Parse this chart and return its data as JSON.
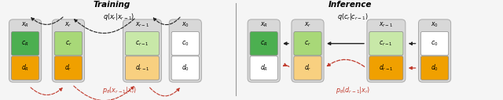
{
  "bg_color": "#f5f5f5",
  "panel_bg": "#d8d8d8",
  "green_dark": "#4caf50",
  "green_light": "#a8d878",
  "green_lighter": "#c8e8a8",
  "orange_dark": "#f0a000",
  "orange_light": "#f8d080",
  "white_box": "#ffffff",
  "arrow_black": "#222222",
  "arrow_red": "#c0392b",
  "divider_color": "#999999",
  "title_training": "Training",
  "title_inference": "Inference",
  "label_xR": "$x_R$",
  "label_xr": "$x_r$",
  "label_xr1": "$x_{r-1}$",
  "label_x0": "$x_0$",
  "label_cR": "$c_R$",
  "label_cr": "$c_r$",
  "label_cr1": "$c_{r-1}$",
  "label_c0": "$c_0$",
  "label_dR": "$d_R$",
  "label_dr": "$d_r$",
  "label_dr1": "$d_{r-1}$",
  "label_d0": "$d_0$",
  "q_train": "$q(x_r|x_{r-1})$",
  "p_train": "$p_\\theta(x_{r-1}|x_r)$",
  "q_infer": "$q(c_r|c_{r-1})$",
  "p_infer": "$p_\\theta(d_{r-1}|x_r)$"
}
